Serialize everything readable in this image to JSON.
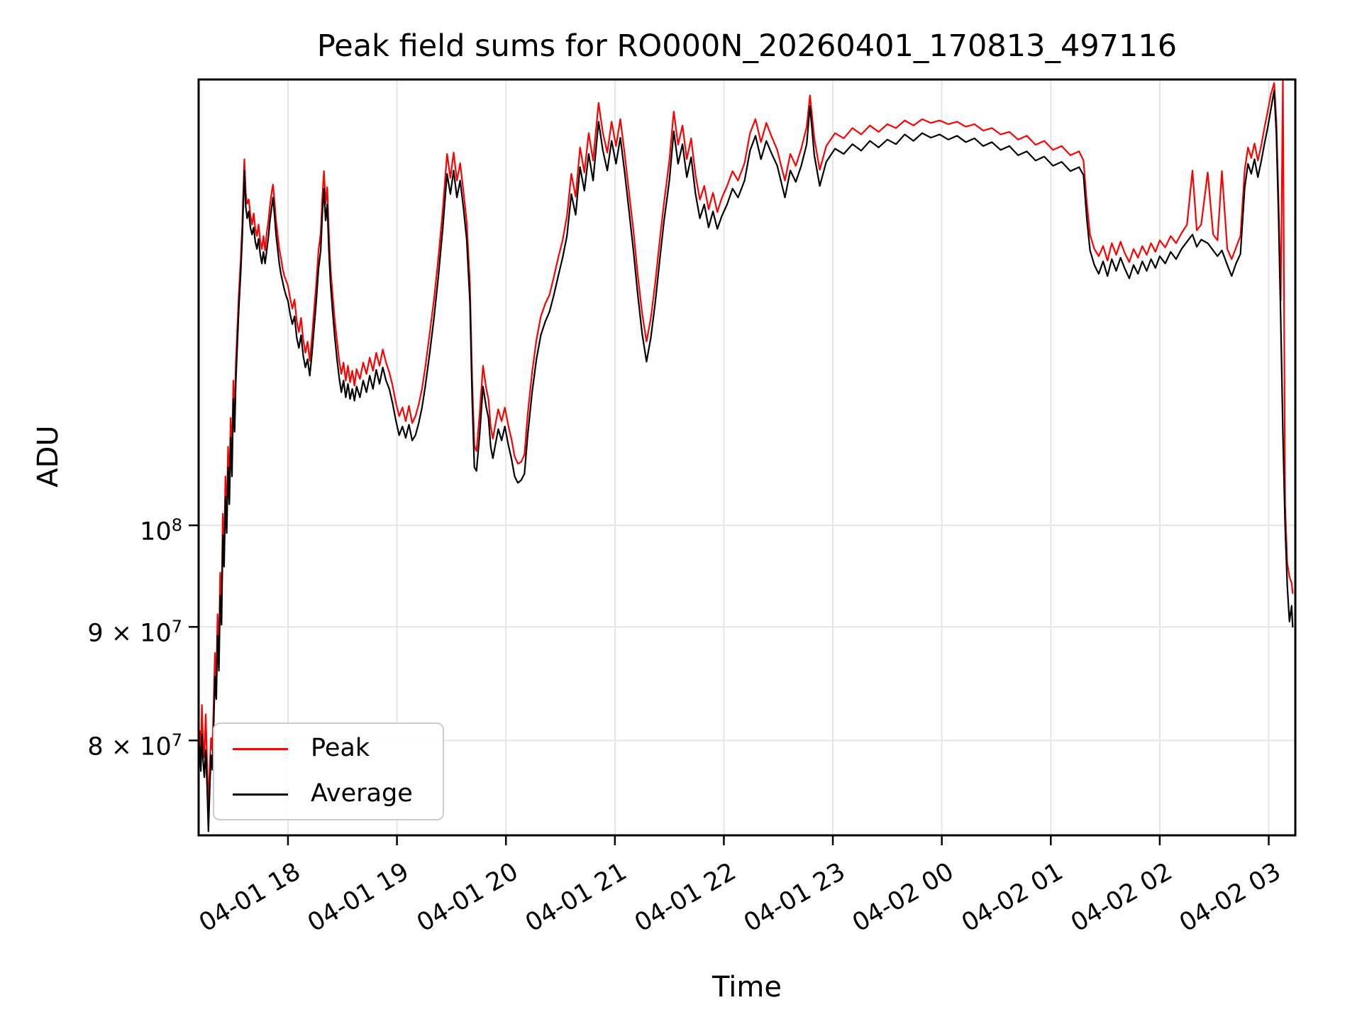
{
  "figure": {
    "title": "Peak field sums for RO000N_20260401_170813_497116",
    "background": "#ffffff"
  },
  "axes": {
    "xlabel": "Time",
    "ylabel": "ADU",
    "spine_color": "#000000",
    "grid_color": "#e6e6e6",
    "tick_color": "#000000"
  },
  "legend": {
    "position": "lower left",
    "border_color": "#cccccc",
    "entries": [
      {
        "label": "Peak",
        "color": "#ff0000"
      },
      {
        "label": "Average",
        "color": "#000000"
      }
    ]
  },
  "chart_data": {
    "type": "line",
    "title": "Peak field sums for RO000N_20260401_170813_497116",
    "xlabel": "Time",
    "ylabel": "ADU",
    "yscale": "log",
    "grid": true,
    "x_unit": "hours after 2026-04-01 17:00",
    "value_unit": "1e7 ADU",
    "xlim": [
      0.18,
      10.244
    ],
    "ylim_e7": [
      7.25,
      15.88
    ],
    "x_ticks": [
      {
        "t": 1,
        "label": "04-01 18"
      },
      {
        "t": 2,
        "label": "04-01 19"
      },
      {
        "t": 3,
        "label": "04-01 20"
      },
      {
        "t": 4,
        "label": "04-01 21"
      },
      {
        "t": 5,
        "label": "04-01 22"
      },
      {
        "t": 6,
        "label": "04-01 23"
      },
      {
        "t": 7,
        "label": "04-02 00"
      },
      {
        "t": 8,
        "label": "04-02 01"
      },
      {
        "t": 9,
        "label": "04-02 02"
      },
      {
        "t": 10,
        "label": "04-02 03"
      }
    ],
    "y_ticks": [
      {
        "v": 10,
        "base": "10",
        "sup": "8"
      },
      {
        "v": 9,
        "base": "9 × 10",
        "sup": "7"
      },
      {
        "v": 8,
        "base": "8 × 10",
        "sup": "7"
      }
    ],
    "series": [
      {
        "name": "Peak",
        "color": "#ff0000",
        "column": 2
      },
      {
        "name": "Average",
        "color": "#000000",
        "column": 1
      }
    ],
    "points": [
      [
        0.18,
        7.82,
        7.98
      ],
      [
        0.19,
        7.95,
        8.08
      ],
      [
        0.2,
        7.75,
        7.9
      ],
      [
        0.21,
        8.05,
        8.3
      ],
      [
        0.22,
        7.85,
        8.02
      ],
      [
        0.232,
        7.7,
        7.86
      ],
      [
        0.245,
        7.92,
        8.22
      ],
      [
        0.258,
        7.62,
        7.8
      ],
      [
        0.27,
        7.28,
        7.5
      ],
      [
        0.282,
        7.62,
        7.78
      ],
      [
        0.294,
        7.88,
        8.02
      ],
      [
        0.306,
        7.76,
        7.92
      ],
      [
        0.318,
        8.12,
        8.32
      ],
      [
        0.33,
        8.55,
        8.76
      ],
      [
        0.342,
        8.35,
        8.52
      ],
      [
        0.354,
        8.92,
        9.12
      ],
      [
        0.366,
        8.6,
        8.8
      ],
      [
        0.378,
        9.3,
        9.52
      ],
      [
        0.39,
        9.02,
        9.22
      ],
      [
        0.402,
        9.9,
        10.12
      ],
      [
        0.414,
        9.58,
        9.76
      ],
      [
        0.426,
        10.3,
        10.52
      ],
      [
        0.438,
        9.92,
        10.12
      ],
      [
        0.45,
        10.62,
        10.85
      ],
      [
        0.462,
        10.22,
        10.42
      ],
      [
        0.474,
        10.95,
        11.18
      ],
      [
        0.486,
        10.52,
        10.72
      ],
      [
        0.498,
        11.4,
        11.62
      ],
      [
        0.51,
        11.02,
        11.22
      ],
      [
        0.522,
        11.62,
        11.85
      ],
      [
        0.535,
        12.05,
        12.26
      ],
      [
        0.55,
        12.55,
        12.74
      ],
      [
        0.565,
        12.95,
        13.14
      ],
      [
        0.58,
        13.45,
        13.64
      ],
      [
        0.59,
        13.95,
        14.14
      ],
      [
        0.6,
        14.45,
        14.62
      ],
      [
        0.612,
        13.92,
        14.12
      ],
      [
        0.625,
        13.75,
        13.96
      ],
      [
        0.64,
        13.85,
        14.02
      ],
      [
        0.655,
        13.62,
        13.8
      ],
      [
        0.67,
        13.52,
        13.66
      ],
      [
        0.685,
        13.62,
        13.82
      ],
      [
        0.7,
        13.42,
        13.6
      ],
      [
        0.715,
        13.32,
        13.5
      ],
      [
        0.73,
        13.46,
        13.66
      ],
      [
        0.745,
        13.25,
        13.44
      ],
      [
        0.76,
        13.12,
        13.32
      ],
      [
        0.775,
        13.28,
        13.5
      ],
      [
        0.79,
        13.12,
        13.3
      ],
      [
        0.805,
        13.3,
        13.54
      ],
      [
        0.82,
        13.48,
        13.7
      ],
      [
        0.835,
        13.72,
        13.94
      ],
      [
        0.85,
        13.9,
        14.12
      ],
      [
        0.862,
        14.05,
        14.24
      ],
      [
        0.875,
        13.82,
        14.02
      ],
      [
        0.89,
        13.52,
        13.72
      ],
      [
        0.905,
        13.32,
        13.52
      ],
      [
        0.92,
        13.12,
        13.32
      ],
      [
        0.935,
        12.98,
        13.2
      ],
      [
        0.95,
        12.88,
        13.06
      ],
      [
        0.965,
        12.78,
        12.96
      ],
      [
        0.98,
        12.7,
        12.9
      ],
      [
        1.0,
        12.62,
        12.82
      ],
      [
        1.02,
        12.45,
        12.66
      ],
      [
        1.04,
        12.32,
        12.52
      ],
      [
        1.06,
        12.42,
        12.64
      ],
      [
        1.08,
        12.15,
        12.36
      ],
      [
        1.1,
        12.02,
        12.22
      ],
      [
        1.12,
        12.18,
        12.4
      ],
      [
        1.14,
        11.92,
        12.12
      ],
      [
        1.16,
        11.78,
        11.96
      ],
      [
        1.18,
        11.88,
        12.1
      ],
      [
        1.2,
        11.68,
        11.86
      ],
      [
        1.22,
        11.95,
        12.16
      ],
      [
        1.24,
        12.28,
        12.5
      ],
      [
        1.26,
        12.62,
        12.86
      ],
      [
        1.28,
        13.05,
        13.3
      ],
      [
        1.3,
        13.3,
        13.54
      ],
      [
        1.315,
        13.82,
        14.06
      ],
      [
        1.33,
        14.18,
        14.44
      ],
      [
        1.345,
        13.72,
        13.96
      ],
      [
        1.36,
        13.95,
        14.2
      ],
      [
        1.375,
        13.3,
        13.54
      ],
      [
        1.39,
        12.85,
        13.06
      ],
      [
        1.41,
        12.48,
        12.7
      ],
      [
        1.43,
        12.15,
        12.36
      ],
      [
        1.45,
        11.88,
        12.1
      ],
      [
        1.47,
        11.65,
        11.86
      ],
      [
        1.49,
        11.48,
        11.7
      ],
      [
        1.51,
        11.62,
        11.84
      ],
      [
        1.53,
        11.42,
        11.62
      ],
      [
        1.55,
        11.58,
        11.8
      ],
      [
        1.57,
        11.4,
        11.6
      ],
      [
        1.59,
        11.52,
        11.74
      ],
      [
        1.61,
        11.38,
        11.56
      ],
      [
        1.63,
        11.55,
        11.76
      ],
      [
        1.66,
        11.42,
        11.64
      ],
      [
        1.69,
        11.62,
        11.84
      ],
      [
        1.72,
        11.48,
        11.7
      ],
      [
        1.75,
        11.68,
        11.9
      ],
      [
        1.78,
        11.52,
        11.74
      ],
      [
        1.81,
        11.75,
        11.96
      ],
      [
        1.84,
        11.58,
        11.8
      ],
      [
        1.87,
        11.78,
        12.0
      ],
      [
        1.9,
        11.62,
        11.84
      ],
      [
        1.93,
        11.52,
        11.72
      ],
      [
        1.96,
        11.35,
        11.56
      ],
      [
        1.99,
        11.15,
        11.36
      ],
      [
        2.02,
        10.98,
        11.2
      ],
      [
        2.05,
        11.08,
        11.3
      ],
      [
        2.08,
        10.95,
        11.14
      ],
      [
        2.11,
        11.1,
        11.32
      ],
      [
        2.14,
        10.92,
        11.12
      ],
      [
        2.17,
        10.98,
        11.2
      ],
      [
        2.2,
        11.12,
        11.34
      ],
      [
        2.23,
        11.3,
        11.52
      ],
      [
        2.26,
        11.55,
        11.78
      ],
      [
        2.3,
        11.95,
        12.2
      ],
      [
        2.34,
        12.4,
        12.64
      ],
      [
        2.38,
        12.95,
        13.2
      ],
      [
        2.42,
        13.6,
        13.86
      ],
      [
        2.46,
        14.4,
        14.7
      ],
      [
        2.49,
        14.1,
        14.34
      ],
      [
        2.52,
        14.45,
        14.72
      ],
      [
        2.55,
        14.05,
        14.3
      ],
      [
        2.58,
        14.3,
        14.56
      ],
      [
        2.61,
        13.9,
        14.14
      ],
      [
        2.64,
        13.45,
        13.7
      ],
      [
        2.67,
        12.6,
        12.84
      ],
      [
        2.69,
        11.4,
        11.64
      ],
      [
        2.71,
        10.62,
        10.86
      ],
      [
        2.73,
        10.58,
        10.8
      ],
      [
        2.76,
        11.0,
        11.24
      ],
      [
        2.79,
        11.55,
        11.8
      ],
      [
        2.82,
        11.3,
        11.52
      ],
      [
        2.84,
        11.18,
        11.4
      ],
      [
        2.86,
        10.85,
        11.08
      ],
      [
        2.88,
        10.72,
        10.94
      ],
      [
        2.9,
        10.85,
        11.08
      ],
      [
        2.93,
        11.05,
        11.28
      ],
      [
        2.96,
        10.92,
        11.14
      ],
      [
        2.99,
        11.08,
        11.3
      ],
      [
        3.02,
        10.88,
        11.1
      ],
      [
        3.05,
        10.72,
        10.94
      ],
      [
        3.08,
        10.52,
        10.74
      ],
      [
        3.11,
        10.45,
        10.66
      ],
      [
        3.14,
        10.48,
        10.68
      ],
      [
        3.17,
        10.55,
        10.76
      ],
      [
        3.2,
        10.98,
        11.22
      ],
      [
        3.24,
        11.48,
        11.72
      ],
      [
        3.28,
        11.88,
        12.12
      ],
      [
        3.32,
        12.18,
        12.42
      ],
      [
        3.36,
        12.35,
        12.58
      ],
      [
        3.4,
        12.48,
        12.7
      ],
      [
        3.44,
        12.7,
        12.94
      ],
      [
        3.48,
        12.95,
        13.2
      ],
      [
        3.52,
        13.2,
        13.44
      ],
      [
        3.56,
        13.5,
        13.78
      ],
      [
        3.6,
        14.1,
        14.4
      ],
      [
        3.64,
        13.8,
        14.06
      ],
      [
        3.68,
        14.5,
        14.8
      ],
      [
        3.72,
        14.15,
        14.42
      ],
      [
        3.76,
        14.7,
        15.02
      ],
      [
        3.8,
        14.3,
        14.6
      ],
      [
        3.85,
        15.2,
        15.5
      ],
      [
        3.89,
        14.75,
        15.02
      ],
      [
        3.93,
        14.45,
        14.72
      ],
      [
        3.97,
        14.9,
        15.2
      ],
      [
        4.01,
        14.55,
        14.82
      ],
      [
        4.05,
        14.95,
        15.24
      ],
      [
        4.09,
        14.42,
        14.7
      ],
      [
        4.13,
        13.85,
        14.12
      ],
      [
        4.17,
        13.3,
        13.58
      ],
      [
        4.21,
        12.7,
        12.96
      ],
      [
        4.25,
        12.2,
        12.46
      ],
      [
        4.29,
        11.85,
        12.1
      ],
      [
        4.33,
        12.15,
        12.4
      ],
      [
        4.37,
        12.6,
        12.86
      ],
      [
        4.41,
        13.15,
        13.42
      ],
      [
        4.45,
        13.7,
        13.96
      ],
      [
        4.5,
        14.3,
        14.6
      ],
      [
        4.54,
        15.05,
        15.36
      ],
      [
        4.58,
        14.55,
        14.84
      ],
      [
        4.62,
        14.85,
        15.14
      ],
      [
        4.66,
        14.35,
        14.62
      ],
      [
        4.7,
        14.65,
        14.94
      ],
      [
        4.74,
        14.1,
        14.38
      ],
      [
        4.78,
        13.75,
        14.02
      ],
      [
        4.82,
        13.95,
        14.22
      ],
      [
        4.86,
        13.62,
        13.88
      ],
      [
        4.9,
        13.85,
        14.12
      ],
      [
        4.94,
        13.6,
        13.84
      ],
      [
        4.98,
        13.78,
        14.04
      ],
      [
        5.03,
        13.95,
        14.22
      ],
      [
        5.08,
        14.18,
        14.44
      ],
      [
        5.13,
        14.05,
        14.3
      ],
      [
        5.19,
        14.3,
        14.56
      ],
      [
        5.24,
        14.75,
        15.02
      ],
      [
        5.29,
        14.98,
        15.24
      ],
      [
        5.34,
        14.62,
        14.88
      ],
      [
        5.39,
        14.9,
        15.18
      ],
      [
        5.44,
        14.7,
        14.96
      ],
      [
        5.49,
        14.52,
        14.76
      ],
      [
        5.52,
        14.32,
        14.56
      ],
      [
        5.56,
        14.05,
        14.3
      ],
      [
        5.61,
        14.45,
        14.7
      ],
      [
        5.66,
        14.28,
        14.52
      ],
      [
        5.71,
        14.52,
        14.78
      ],
      [
        5.76,
        14.85,
        15.12
      ],
      [
        5.79,
        15.45,
        15.62
      ],
      [
        5.83,
        14.68,
        14.94
      ],
      [
        5.88,
        14.22,
        14.46
      ],
      [
        5.94,
        14.58,
        14.82
      ],
      [
        6.02,
        14.78,
        15.02
      ],
      [
        6.1,
        14.7,
        14.94
      ],
      [
        6.18,
        14.85,
        15.1
      ],
      [
        6.26,
        14.75,
        15.0
      ],
      [
        6.34,
        14.9,
        15.14
      ],
      [
        6.42,
        14.8,
        15.04
      ],
      [
        6.5,
        14.92,
        15.16
      ],
      [
        6.58,
        14.85,
        15.1
      ],
      [
        6.66,
        15.0,
        15.22
      ],
      [
        6.74,
        14.9,
        15.14
      ],
      [
        6.82,
        15.02,
        15.24
      ],
      [
        6.9,
        14.95,
        15.18
      ],
      [
        6.98,
        15.0,
        15.22
      ],
      [
        7.06,
        14.92,
        15.16
      ],
      [
        7.14,
        14.98,
        15.2
      ],
      [
        7.22,
        14.88,
        15.12
      ],
      [
        7.3,
        14.94,
        15.16
      ],
      [
        7.38,
        14.82,
        15.06
      ],
      [
        7.46,
        14.88,
        15.1
      ],
      [
        7.54,
        14.76,
        15.0
      ],
      [
        7.62,
        14.82,
        15.04
      ],
      [
        7.7,
        14.68,
        14.92
      ],
      [
        7.78,
        14.74,
        14.98
      ],
      [
        7.86,
        14.6,
        14.84
      ],
      [
        7.94,
        14.66,
        14.9
      ],
      [
        8.02,
        14.52,
        14.76
      ],
      [
        8.1,
        14.58,
        14.82
      ],
      [
        8.18,
        14.44,
        14.68
      ],
      [
        8.26,
        14.5,
        14.74
      ],
      [
        8.3,
        14.38,
        14.6
      ],
      [
        8.33,
        13.75,
        13.98
      ],
      [
        8.36,
        13.3,
        13.52
      ],
      [
        8.4,
        13.1,
        13.32
      ],
      [
        8.44,
        12.98,
        13.22
      ],
      [
        8.48,
        13.15,
        13.36
      ],
      [
        8.52,
        12.95,
        13.16
      ],
      [
        8.56,
        13.18,
        13.4
      ],
      [
        8.6,
        13.02,
        13.24
      ],
      [
        8.64,
        13.2,
        13.42
      ],
      [
        8.68,
        13.05,
        13.26
      ],
      [
        8.72,
        12.92,
        13.14
      ],
      [
        8.76,
        13.1,
        13.32
      ],
      [
        8.8,
        12.98,
        13.2
      ],
      [
        8.84,
        13.15,
        13.36
      ],
      [
        8.88,
        13.02,
        13.24
      ],
      [
        8.92,
        13.18,
        13.4
      ],
      [
        8.96,
        13.06,
        13.28
      ],
      [
        9.0,
        13.22,
        13.44
      ],
      [
        9.05,
        13.12,
        13.34
      ],
      [
        9.1,
        13.28,
        13.5
      ],
      [
        9.15,
        13.18,
        13.4
      ],
      [
        9.2,
        13.32,
        13.54
      ],
      [
        9.25,
        13.42,
        13.66
      ],
      [
        9.3,
        13.52,
        14.45
      ],
      [
        9.34,
        13.35,
        13.58
      ],
      [
        9.38,
        13.45,
        13.66
      ],
      [
        9.44,
        13.4,
        14.42
      ],
      [
        9.49,
        13.3,
        13.52
      ],
      [
        9.53,
        13.22,
        13.44
      ],
      [
        9.57,
        13.3,
        14.44
      ],
      [
        9.62,
        13.1,
        13.32
      ],
      [
        9.66,
        12.95,
        13.18
      ],
      [
        9.7,
        13.12,
        13.34
      ],
      [
        9.74,
        13.25,
        13.5
      ],
      [
        9.78,
        14.2,
        14.46
      ],
      [
        9.81,
        14.55,
        14.8
      ],
      [
        9.84,
        14.4,
        14.64
      ],
      [
        9.87,
        14.62,
        14.86
      ],
      [
        9.9,
        14.35,
        14.6
      ],
      [
        9.93,
        14.58,
        14.82
      ],
      [
        9.96,
        14.85,
        15.1
      ],
      [
        9.99,
        15.1,
        15.36
      ],
      [
        10.02,
        15.4,
        15.64
      ],
      [
        10.05,
        15.7,
        15.82
      ],
      [
        10.07,
        15.0,
        15.22
      ],
      [
        10.09,
        13.8,
        14.02
      ],
      [
        10.11,
        12.4,
        12.62
      ],
      [
        10.13,
        11.0,
        15.88
      ],
      [
        10.15,
        10.0,
        10.22
      ],
      [
        10.17,
        9.4,
        9.62
      ],
      [
        10.19,
        9.05,
        9.48
      ],
      [
        10.21,
        9.2,
        9.42
      ],
      [
        10.22,
        9.0,
        9.32
      ]
    ]
  }
}
